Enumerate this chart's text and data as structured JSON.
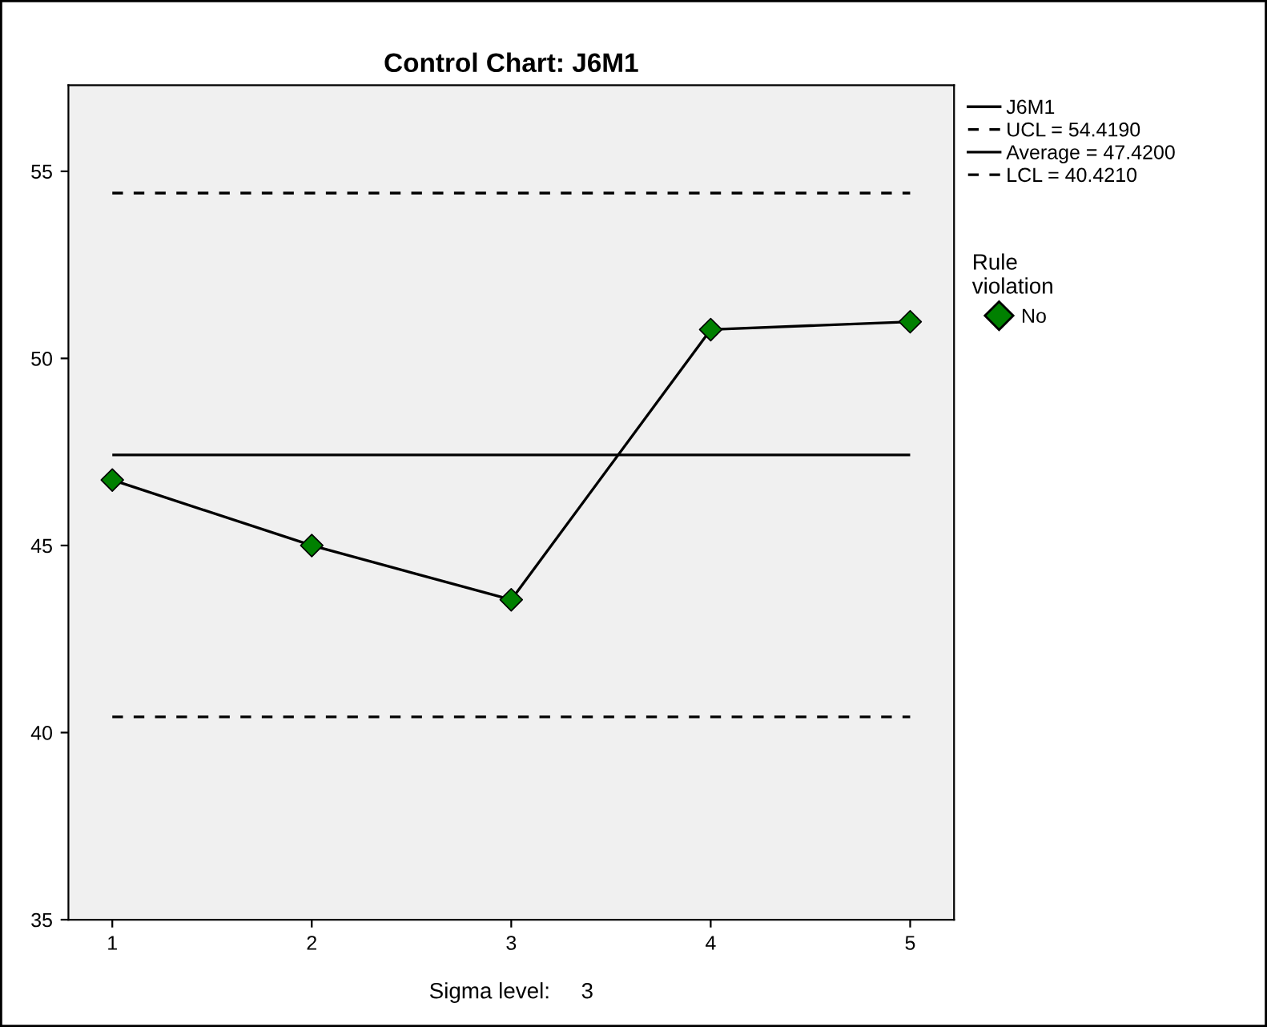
{
  "chart_data": {
    "type": "line",
    "title": "Control Chart: J6M1",
    "x": [
      1,
      2,
      3,
      4,
      5
    ],
    "series": [
      {
        "name": "J6M1",
        "color": "#000000",
        "marker": "none",
        "values": [
          46.75,
          45.0,
          43.55,
          50.77,
          50.98
        ]
      },
      {
        "name": "No",
        "type": "scatter",
        "color": "#008000",
        "marker": "diamond",
        "values": [
          46.75,
          45.0,
          43.55,
          50.77,
          50.98
        ]
      }
    ],
    "ref_lines": [
      {
        "axis": "y",
        "value": 54.419,
        "label": "UCL = 54.4190",
        "line_style": "dashed",
        "color": "#000000"
      },
      {
        "axis": "y",
        "value": 47.42,
        "label": "Average = 47.4200",
        "line_style": "solid",
        "color": "#000000"
      },
      {
        "axis": "y",
        "value": 40.421,
        "label": "LCL = 40.4210",
        "line_style": "dashed",
        "color": "#000000"
      }
    ],
    "legend_title": "Rule violation",
    "legend": "right",
    "annotations": [
      "Sigma level:     3"
    ],
    "xlim": [
      0.78,
      5.22
    ],
    "xticks": [
      1,
      2,
      3,
      4,
      5
    ],
    "ylim": [
      35,
      57.3
    ],
    "yticks": [
      35,
      40,
      45,
      50,
      55
    ],
    "grid": false
  }
}
